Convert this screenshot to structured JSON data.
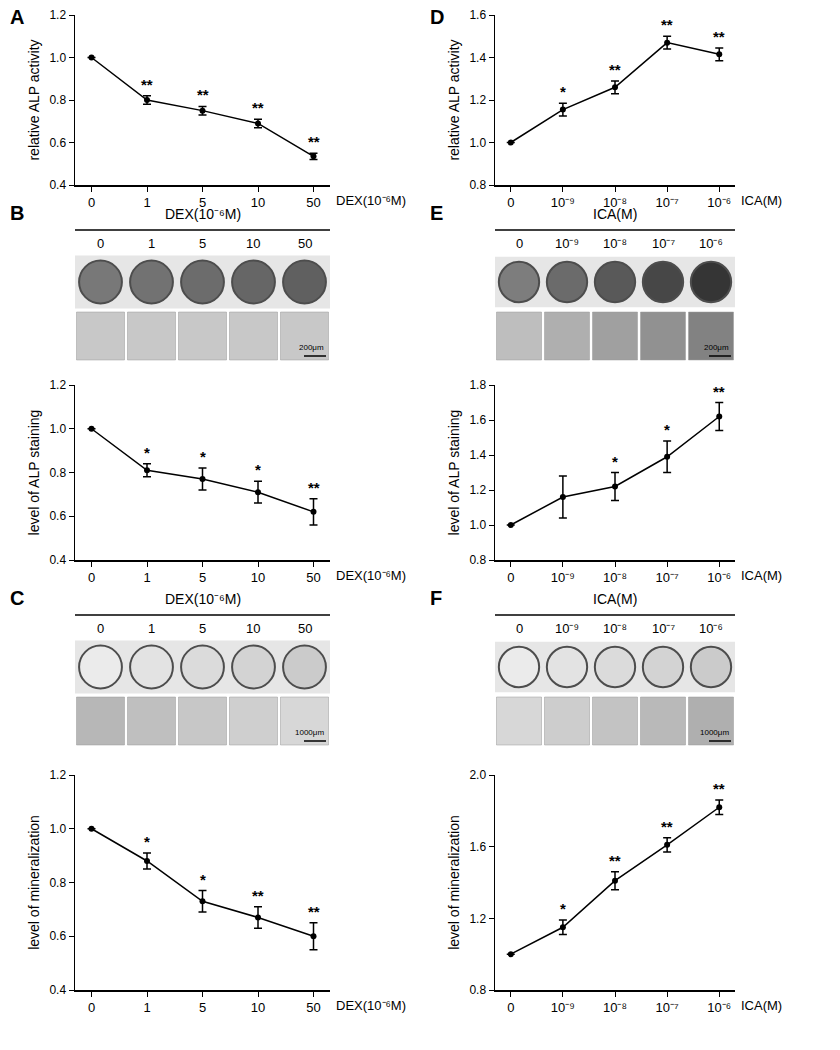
{
  "chart_data": [
    {
      "type": "line",
      "title": "A",
      "categories": [
        "0",
        "1",
        "5",
        "10",
        "50"
      ],
      "values": [
        1.0,
        0.8,
        0.75,
        0.69,
        0.535
      ],
      "errors": [
        0,
        0.02,
        0.02,
        0.02,
        0.015
      ],
      "significance": [
        null,
        "**",
        "**",
        "**",
        "**"
      ],
      "ylabel": "relative ALP activity",
      "xlabel": "DEX(10⁻⁶M)",
      "ylim": [
        0.4,
        1.2
      ],
      "yticks": [
        0.4,
        0.6,
        0.8,
        {
          "value": 1,
          "label": "1.0"
        },
        1.2
      ],
      "color": "#000000",
      "marker": "circle",
      "line_style": "solid"
    },
    {
      "type": "line",
      "title": "B",
      "categories": [
        "0",
        "1",
        "5",
        "10",
        "50"
      ],
      "values": [
        1.0,
        0.81,
        0.77,
        0.71,
        0.62
      ],
      "errors": [
        0,
        0.03,
        0.05,
        0.05,
        0.06
      ],
      "significance": [
        null,
        "*",
        "*",
        "*",
        "**"
      ],
      "ylabel": "level of ALP staining",
      "xlabel": "DEX(10⁻⁶M)",
      "ylim": [
        0.4,
        1.2
      ],
      "yticks": [
        0.4,
        0.6,
        0.8,
        {
          "value": 1,
          "label": "1.0"
        },
        1.2
      ],
      "color": "#000000",
      "marker": "circle",
      "line_style": "solid",
      "header": "DEX(10⁻⁶M)",
      "scale_bar": "200μm"
    },
    {
      "type": "line",
      "title": "C",
      "categories": [
        "0",
        "1",
        "5",
        "10",
        "50"
      ],
      "values": [
        1.0,
        0.88,
        0.73,
        0.67,
        0.6
      ],
      "errors": [
        0,
        0.03,
        0.04,
        0.04,
        0.05
      ],
      "significance": [
        null,
        "*",
        "*",
        "**",
        "**"
      ],
      "ylabel": "level of mineralization",
      "xlabel": "DEX(10⁻⁶M)",
      "ylim": [
        0.4,
        1.2
      ],
      "yticks": [
        0.4,
        0.6,
        0.8,
        {
          "value": 1,
          "label": "1.0"
        },
        1.2
      ],
      "color": "#000000",
      "marker": "circle",
      "line_style": "solid",
      "header": "DEX(10⁻⁶M)",
      "scale_bar": "1000μm"
    },
    {
      "type": "line",
      "title": "D",
      "categories": [
        "0",
        "10⁻⁹",
        "10⁻⁸",
        "10⁻⁷",
        "10⁻⁶"
      ],
      "values": [
        1.0,
        1.155,
        1.26,
        1.47,
        1.415
      ],
      "errors": [
        0,
        0.03,
        0.03,
        0.03,
        0.03
      ],
      "significance": [
        null,
        "*",
        "**",
        "**",
        "**"
      ],
      "ylabel": "relative ALP activity",
      "xlabel": "ICA(M)",
      "ylim": [
        0.8,
        1.6
      ],
      "yticks": [
        0.8,
        {
          "value": 1,
          "label": "1.0"
        },
        1.2,
        1.4,
        1.6
      ],
      "color": "#000000",
      "marker": "circle",
      "line_style": "solid"
    },
    {
      "type": "line",
      "title": "E",
      "categories": [
        "0",
        "10⁻⁹",
        "10⁻⁸",
        "10⁻⁷",
        "10⁻⁶"
      ],
      "values": [
        1.0,
        1.16,
        1.22,
        1.39,
        1.62
      ],
      "errors": [
        0,
        0.12,
        0.08,
        0.09,
        0.08
      ],
      "significance": [
        null,
        null,
        "*",
        "*",
        "**"
      ],
      "ylabel": "level of ALP staining",
      "xlabel": "ICA(M)",
      "ylim": [
        0.8,
        1.8
      ],
      "yticks": [
        0.8,
        {
          "value": 1,
          "label": "1.0"
        },
        1.2,
        1.4,
        1.6,
        1.8
      ],
      "color": "#000000",
      "marker": "circle",
      "line_style": "solid",
      "header": "ICA(M)",
      "scale_bar": "200μm"
    },
    {
      "type": "line",
      "title": "F",
      "categories": [
        "0",
        "10⁻⁹",
        "10⁻⁸",
        "10⁻⁷",
        "10⁻⁶"
      ],
      "values": [
        1.0,
        1.15,
        1.41,
        1.61,
        1.82
      ],
      "errors": [
        0,
        0.04,
        0.05,
        0.04,
        0.04
      ],
      "significance": [
        null,
        "*",
        "**",
        "**",
        "**"
      ],
      "ylabel": "level of mineralization",
      "xlabel": "ICA(M)",
      "ylim": [
        0.8,
        2.0
      ],
      "yticks": [
        0.8,
        1.2,
        1.6,
        {
          "value": 2,
          "label": "2.0"
        }
      ],
      "color": "#000000",
      "marker": "circle",
      "line_style": "solid",
      "header": "ICA(M)",
      "scale_bar": "1000μm"
    }
  ]
}
